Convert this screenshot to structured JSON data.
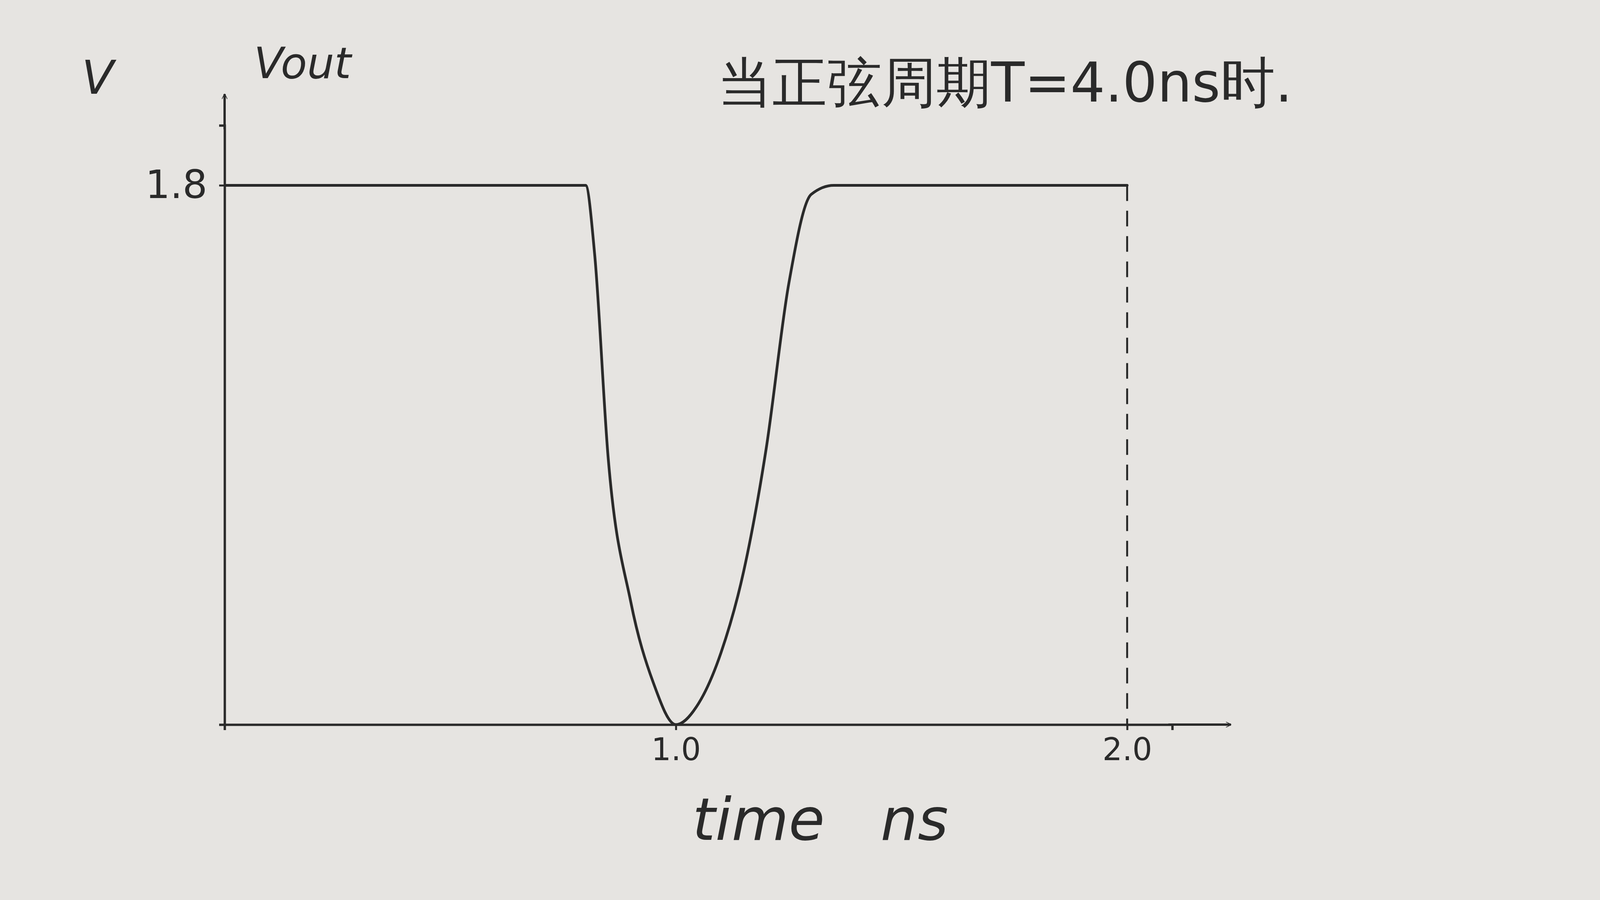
{
  "chart_data": {
    "type": "line",
    "title": "当正弦周期T=4.0ns时.",
    "y_unit": "V",
    "y_label": "Vout",
    "x_label": "time   ns",
    "x": [
      0,
      0.8,
      0.82,
      0.85,
      0.9,
      0.95,
      1.0,
      1.05,
      1.1,
      1.15,
      1.2,
      1.25,
      1.3,
      1.35,
      2.0
    ],
    "series": [
      {
        "name": "Vout",
        "color": "#2a2a2a",
        "values": [
          1.8,
          1.8,
          1.57,
          0.89,
          0.41,
          0.14,
          0.0,
          0.07,
          0.24,
          0.51,
          0.92,
          1.47,
          1.77,
          1.8,
          1.8
        ]
      }
    ],
    "xlim": [
      0,
      2.1
    ],
    "ylim": [
      0,
      2.0
    ],
    "xticks": [
      {
        "value": 1.0,
        "label": "1.0"
      },
      {
        "value": 2.0,
        "label": "2.0"
      }
    ],
    "yticks": [
      1.8
    ],
    "grid": false
  }
}
